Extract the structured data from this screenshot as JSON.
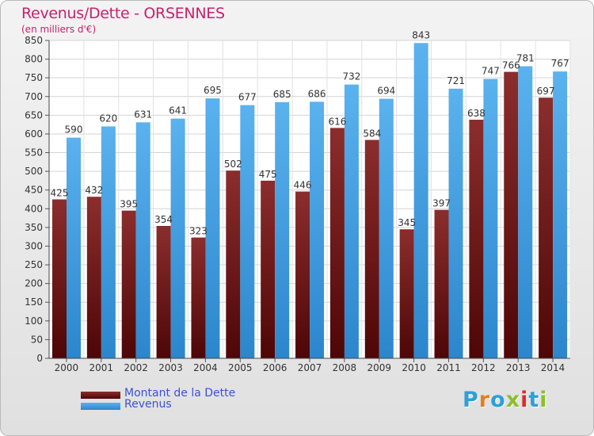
{
  "header": {
    "title": "Revenus/Dette - ORSENNES",
    "subtitle": "(en milliers d'€)"
  },
  "colors": {
    "title": "#c8216d",
    "dette": "#7a1a1a",
    "revenus": "#3d9be0",
    "legend_text": "#3b52d6"
  },
  "logo": {
    "text": "Proxiti",
    "letter_colors": [
      "#2e9fd8",
      "#e87c1e",
      "#2e9fd8",
      "#8bbf2d",
      "#e0292b",
      "#2e9fd8",
      "#8bbf2d"
    ]
  },
  "chart_data": {
    "type": "bar",
    "title": "Revenus/Dette - ORSENNES",
    "ylabel": "(en milliers d'€)",
    "xlabel": "",
    "ylim": [
      0,
      850
    ],
    "ytick_step": 50,
    "grid": true,
    "legend_position": "bottom-left",
    "categories": [
      "2000",
      "2001",
      "2002",
      "2003",
      "2004",
      "2005",
      "2006",
      "2007",
      "2008",
      "2009",
      "2010",
      "2011",
      "2012",
      "2013",
      "2014"
    ],
    "series": [
      {
        "name": "Montant de la Dette",
        "values": [
          425,
          432,
          395,
          354,
          323,
          502,
          475,
          446,
          616,
          584,
          345,
          397,
          638,
          766,
          697
        ]
      },
      {
        "name": "Revenus",
        "values": [
          590,
          620,
          631,
          641,
          695,
          677,
          685,
          686,
          732,
          694,
          843,
          721,
          747,
          781,
          767
        ]
      }
    ]
  }
}
